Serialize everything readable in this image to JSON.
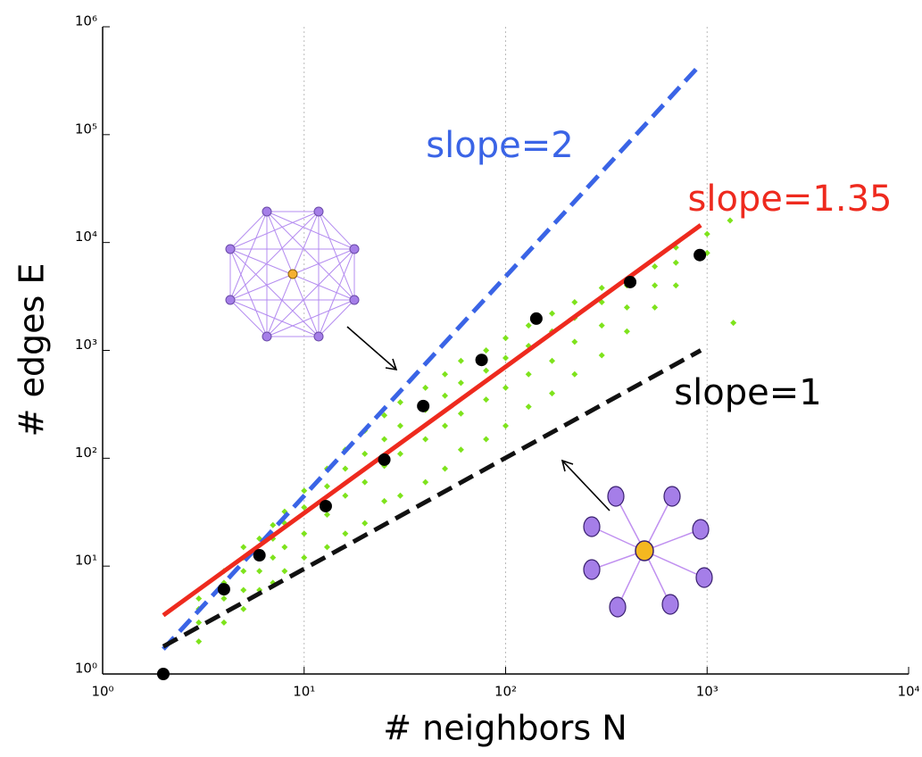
{
  "chart_data": {
    "type": "scatter",
    "log_x": true,
    "log_y": true,
    "grid": true,
    "x_label": "# neighbors N",
    "y_label": "# edges E",
    "xlim": [
      1,
      10000
    ],
    "ylim": [
      1,
      1000000
    ],
    "xticks": [
      {
        "value": 1,
        "label": "10⁰"
      },
      {
        "value": 10,
        "label": "10¹"
      },
      {
        "value": 100,
        "label": "10²"
      },
      {
        "value": 1000,
        "label": "10³"
      },
      {
        "value": 10000,
        "label": "10⁴"
      }
    ],
    "yticks": [
      {
        "value": 1,
        "label": "10⁰"
      },
      {
        "value": 10,
        "label": "10¹"
      },
      {
        "value": 100,
        "label": "10²"
      },
      {
        "value": 1000,
        "label": "10³"
      },
      {
        "value": 10000,
        "label": "10⁴"
      },
      {
        "value": 100000,
        "label": "10⁵"
      },
      {
        "value": 1000000,
        "label": "10⁶"
      }
    ],
    "series": [
      {
        "kind": "scatter",
        "color": "#7ee31c",
        "x": [
          3,
          3,
          3,
          3,
          4,
          4,
          4,
          4,
          5,
          5,
          5,
          5,
          5,
          6,
          6,
          6,
          6,
          7,
          7,
          7,
          7,
          8,
          8,
          8,
          8,
          10,
          10,
          10,
          10,
          13,
          13,
          13,
          13,
          16,
          16,
          16,
          16,
          20,
          20,
          20,
          20,
          25,
          25,
          25,
          25,
          30,
          30,
          30,
          30,
          40,
          40,
          40,
          40,
          50,
          50,
          50,
          50,
          60,
          60,
          60,
          60,
          80,
          80,
          80,
          80,
          100,
          100,
          100,
          100,
          130,
          130,
          130,
          130,
          170,
          170,
          170,
          170,
          220,
          220,
          220,
          220,
          300,
          300,
          300,
          300,
          400,
          400,
          400,
          550,
          550,
          550,
          700,
          700,
          700,
          1000,
          1000,
          1300,
          1350
        ],
        "y": [
          2,
          3,
          4,
          5,
          3,
          5,
          7,
          9,
          4,
          6,
          9,
          12,
          15,
          6,
          9,
          13,
          18,
          7,
          12,
          18,
          24,
          9,
          15,
          25,
          32,
          12,
          20,
          35,
          50,
          15,
          30,
          55,
          80,
          20,
          45,
          80,
          120,
          25,
          60,
          110,
          180,
          40,
          85,
          150,
          250,
          45,
          110,
          200,
          330,
          60,
          150,
          280,
          450,
          80,
          200,
          380,
          600,
          120,
          260,
          500,
          800,
          150,
          350,
          650,
          1000,
          200,
          450,
          850,
          1300,
          300,
          600,
          1100,
          1700,
          400,
          800,
          1500,
          2200,
          600,
          1200,
          2000,
          2800,
          900,
          1700,
          2800,
          3800,
          1500,
          2500,
          4000,
          2500,
          4000,
          6000,
          4000,
          6500,
          9000,
          8000,
          12000,
          16000,
          1800
        ]
      },
      {
        "kind": "scatter",
        "color": "#000000",
        "size": 7,
        "x": [
          2,
          4,
          6,
          12.8,
          25,
          39,
          76,
          142,
          415,
          920
        ],
        "y": [
          1,
          6.1,
          12.6,
          36,
          97,
          305,
          815,
          1970,
          4300,
          7650
        ]
      },
      {
        "kind": "line",
        "color": "#3a64e6",
        "dash": true,
        "x": [
          2,
          930
        ],
        "y": [
          1.7,
          450000
        ]
      },
      {
        "kind": "line",
        "color": "#ee2a1e",
        "dash": false,
        "x": [
          2,
          930
        ],
        "y": [
          3.5,
          14500
        ]
      },
      {
        "kind": "line",
        "color": "#111111",
        "dash": true,
        "x": [
          2,
          930
        ],
        "y": [
          1.8,
          1000
        ]
      }
    ],
    "annotations": [
      {
        "text": "slope=2",
        "color": "#3a64e6"
      },
      {
        "text": "slope=1.35",
        "color": "#ee2a1e"
      },
      {
        "text": "slope=1",
        "color": "#000000"
      }
    ]
  }
}
